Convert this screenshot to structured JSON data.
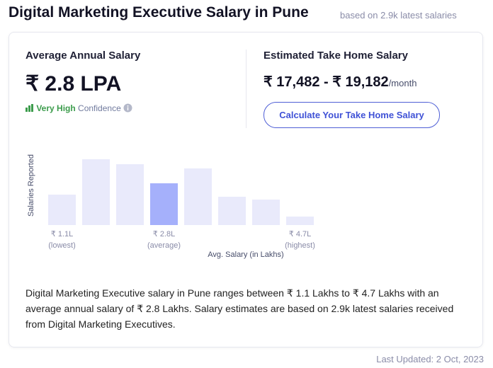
{
  "header": {
    "title": "Digital Marketing Executive Salary in Pune",
    "subtitle": "based on 2.9k latest salaries"
  },
  "average": {
    "label": "Average Annual Salary",
    "value": "₹ 2.8 LPA",
    "confidence_level": "Very High",
    "confidence_text": "Confidence"
  },
  "take_home": {
    "label": "Estimated Take Home Salary",
    "value": "₹ 17,482 - ₹ 19,182",
    "unit": "/month",
    "button": "Calculate Your Take Home Salary"
  },
  "chart_data": {
    "type": "bar",
    "y_label": "Salaries Reported",
    "x_label": "Avg. Salary (in Lakhs)",
    "categories": [
      "₹ 1.1L",
      null,
      null,
      "₹ 2.8L",
      null,
      null,
      null,
      "₹ 4.7L"
    ],
    "category_notes": [
      "(lowest)",
      null,
      null,
      "(average)",
      null,
      null,
      null,
      "(highest)"
    ],
    "values": [
      43,
      93,
      86,
      59,
      80,
      40,
      36,
      12
    ],
    "colors": [
      "#e9eafb",
      "#e9eafb",
      "#e9eafb",
      "#a5b0fb",
      "#e9eafb",
      "#e9eafb",
      "#e9eafb",
      "#e9eafb"
    ],
    "ylim": [
      0,
      100
    ]
  },
  "description": "Digital Marketing Executive salary in Pune ranges between ₹ 1.1 Lakhs to ₹ 4.7 Lakhs with an average annual salary of ₹ 2.8 Lakhs. Salary estimates are based on 2.9k latest salaries received from Digital Marketing Executives.",
  "footer": {
    "last_updated": "Last Updated: 2 Oct, 2023"
  }
}
